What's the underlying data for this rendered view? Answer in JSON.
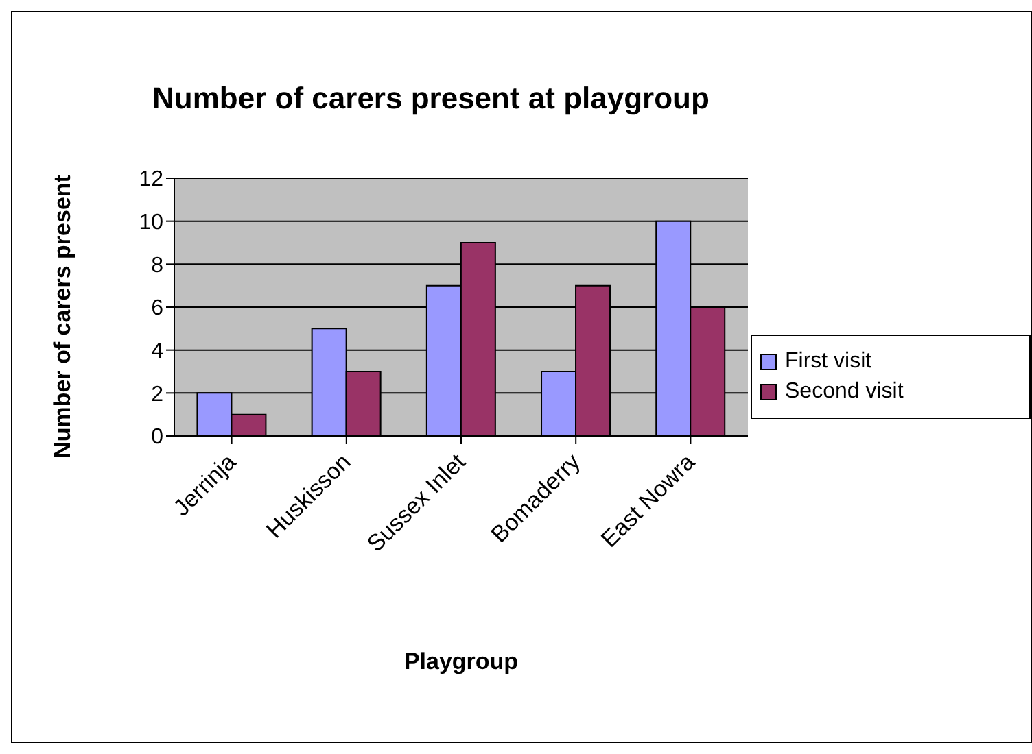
{
  "chart_data": {
    "type": "bar",
    "title": "Number of carers present at playgroup",
    "xlabel": "Playgroup",
    "ylabel": "Number of carers present",
    "categories": [
      "Jerrinja",
      "Huskisson",
      "Sussex Inlet",
      "Bomaderry",
      "East Nowra"
    ],
    "series": [
      {
        "name": "First visit",
        "color": "#9999ff",
        "values": [
          2,
          5,
          7,
          3,
          10
        ]
      },
      {
        "name": "Second visit",
        "color": "#993366",
        "values": [
          1,
          3,
          9,
          7,
          6
        ]
      }
    ],
    "ylim": [
      0,
      12
    ],
    "yticks": [
      0,
      2,
      4,
      6,
      8,
      10,
      12
    ],
    "grid": "y",
    "legend": "right"
  }
}
